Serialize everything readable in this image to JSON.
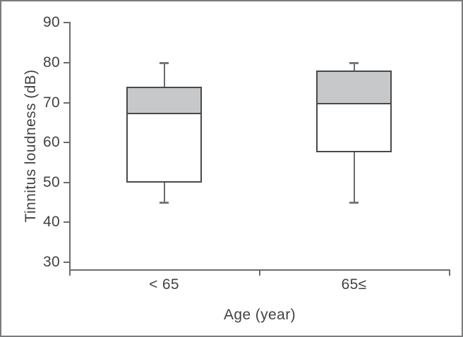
{
  "chart_data": {
    "type": "box",
    "title": "",
    "xlabel": "Age (year)",
    "ylabel": "Tinnitus loudness (dB)",
    "ylim": [
      30,
      90
    ],
    "yticks": [
      30,
      40,
      50,
      60,
      70,
      80,
      90
    ],
    "categories": [
      "< 65",
      "65≤"
    ],
    "series": [
      {
        "category": "< 65",
        "whisker_low": 45,
        "q1": 50,
        "median": 67.5,
        "q3": 74,
        "whisker_high": 80
      },
      {
        "category": "65≤",
        "whisker_low": 45,
        "q1": 57.5,
        "median": 70,
        "q3": 78,
        "whisker_high": 80
      }
    ],
    "grid": false,
    "legend": "none",
    "styles": {
      "box_fill_between_median_and_q3": "#c7c8ca",
      "box_fill_below_median": "#ffffff",
      "box_border_color": "#48494b",
      "whisker_color": "#6b6c6e",
      "whisker_cap_color": "#77787a",
      "axis_color": "#6b6c6e",
      "text_color": "#414244",
      "frame_border_color": "#7b7c7e"
    }
  }
}
